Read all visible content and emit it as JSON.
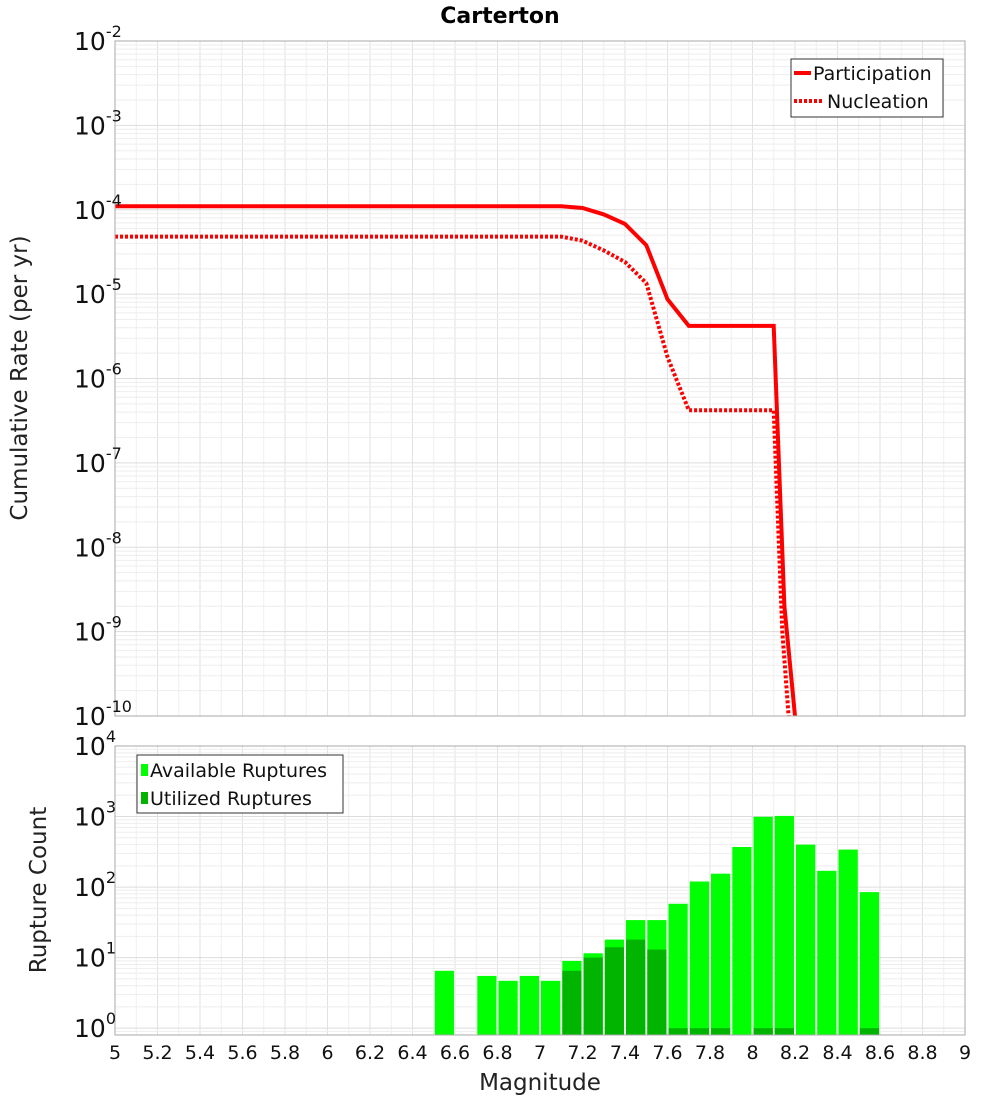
{
  "chart_data": [
    {
      "type": "line",
      "title": "Carterton",
      "xlabel": "",
      "ylabel": "Cumulative Rate (per yr)",
      "xlim": [
        5,
        9
      ],
      "ylim": [
        1e-10,
        0.01
      ],
      "yscale": "log",
      "grid": true,
      "legend_position": "top-right",
      "y_tick_labels": [
        {
          "base": "10",
          "exp": "-2"
        },
        {
          "base": "10",
          "exp": "-3"
        },
        {
          "base": "10",
          "exp": "-4"
        },
        {
          "base": "10",
          "exp": "-5"
        },
        {
          "base": "10",
          "exp": "-6"
        },
        {
          "base": "10",
          "exp": "-7"
        },
        {
          "base": "10",
          "exp": "-8"
        },
        {
          "base": "10",
          "exp": "-9"
        },
        {
          "base": "10",
          "exp": "-10"
        }
      ],
      "series": [
        {
          "name": "Participation",
          "color": "#ff0000",
          "style": "solid",
          "x": [
            5.0,
            5.1,
            5.2,
            5.3,
            5.4,
            5.5,
            5.6,
            5.7,
            5.8,
            5.9,
            6.0,
            6.1,
            6.2,
            6.3,
            6.4,
            6.5,
            6.6,
            6.7,
            6.8,
            6.9,
            7.0,
            7.1,
            7.2,
            7.3,
            7.4,
            7.5,
            7.6,
            7.7,
            7.8,
            7.9,
            8.0,
            8.1,
            8.15,
            8.2
          ],
          "y": [
            0.00011,
            0.00011,
            0.00011,
            0.00011,
            0.00011,
            0.00011,
            0.00011,
            0.00011,
            0.00011,
            0.00011,
            0.00011,
            0.00011,
            0.00011,
            0.00011,
            0.00011,
            0.00011,
            0.00011,
            0.00011,
            0.00011,
            0.00011,
            0.00011,
            0.00011,
            0.000105,
            8.8e-05,
            6.8e-05,
            3.8e-05,
            8.7e-06,
            4.2e-06,
            4.2e-06,
            4.2e-06,
            4.2e-06,
            4.2e-06,
            2e-09,
            1e-10
          ]
        },
        {
          "name": "Nucleation",
          "color": "#ff0000",
          "style": "dotted",
          "x": [
            5.0,
            5.1,
            5.2,
            5.3,
            5.4,
            5.5,
            5.6,
            5.7,
            5.8,
            5.9,
            6.0,
            6.1,
            6.2,
            6.3,
            6.4,
            6.5,
            6.6,
            6.7,
            6.8,
            6.9,
            7.0,
            7.1,
            7.2,
            7.3,
            7.4,
            7.5,
            7.6,
            7.7,
            7.8,
            7.9,
            8.0,
            8.1,
            8.14,
            8.17
          ],
          "y": [
            4.8e-05,
            4.8e-05,
            4.8e-05,
            4.8e-05,
            4.8e-05,
            4.8e-05,
            4.8e-05,
            4.8e-05,
            4.8e-05,
            4.8e-05,
            4.8e-05,
            4.8e-05,
            4.8e-05,
            4.8e-05,
            4.8e-05,
            4.8e-05,
            4.8e-05,
            4.8e-05,
            4.8e-05,
            4.8e-05,
            4.8e-05,
            4.8e-05,
            4.3e-05,
            3.3e-05,
            2.4e-05,
            1.35e-05,
            1.8e-06,
            4.2e-07,
            4.2e-07,
            4.2e-07,
            4.2e-07,
            4.2e-07,
            1e-09,
            1e-10
          ]
        }
      ]
    },
    {
      "type": "bar",
      "title": "",
      "xlabel": "Magnitude",
      "ylabel": "Rupture Count",
      "xlim": [
        5,
        9
      ],
      "ylim": [
        0.8,
        10000
      ],
      "yscale": "log",
      "grid": true,
      "legend_position": "top-left",
      "bin_width": 0.1,
      "x_tick_labels": [
        "5",
        "5.2",
        "5.4",
        "5.6",
        "5.8",
        "6",
        "6.2",
        "6.4",
        "6.6",
        "6.8",
        "7",
        "7.2",
        "7.4",
        "7.6",
        "7.8",
        "8",
        "8.2",
        "8.4",
        "8.6",
        "8.8",
        "9"
      ],
      "y_tick_labels": [
        {
          "base": "10",
          "exp": "4"
        },
        {
          "base": "10",
          "exp": "3"
        },
        {
          "base": "10",
          "exp": "2"
        },
        {
          "base": "10",
          "exp": "1"
        },
        {
          "base": "10",
          "exp": "0"
        }
      ],
      "bin_centers": [
        6.55,
        6.75,
        6.85,
        6.95,
        7.05,
        7.15,
        7.25,
        7.35,
        7.45,
        7.55,
        7.65,
        7.75,
        7.85,
        7.95,
        8.05,
        8.15,
        8.25,
        8.35,
        8.45,
        8.55
      ],
      "series": [
        {
          "name": "Available Ruptures",
          "color": "#00ff00",
          "values": [
            6.5,
            5.5,
            4.7,
            5.5,
            4.7,
            9.0,
            11.5,
            18,
            34,
            34,
            58,
            120,
            155,
            370,
            990,
            1020,
            400,
            170,
            340,
            85
          ]
        },
        {
          "name": "Utilized Ruptures",
          "color": "#00b400",
          "values": [
            0,
            0,
            0,
            0,
            0,
            6.5,
            10,
            14,
            18,
            13,
            1,
            1,
            1,
            0,
            1,
            1,
            0,
            0,
            0,
            1
          ]
        }
      ]
    }
  ]
}
